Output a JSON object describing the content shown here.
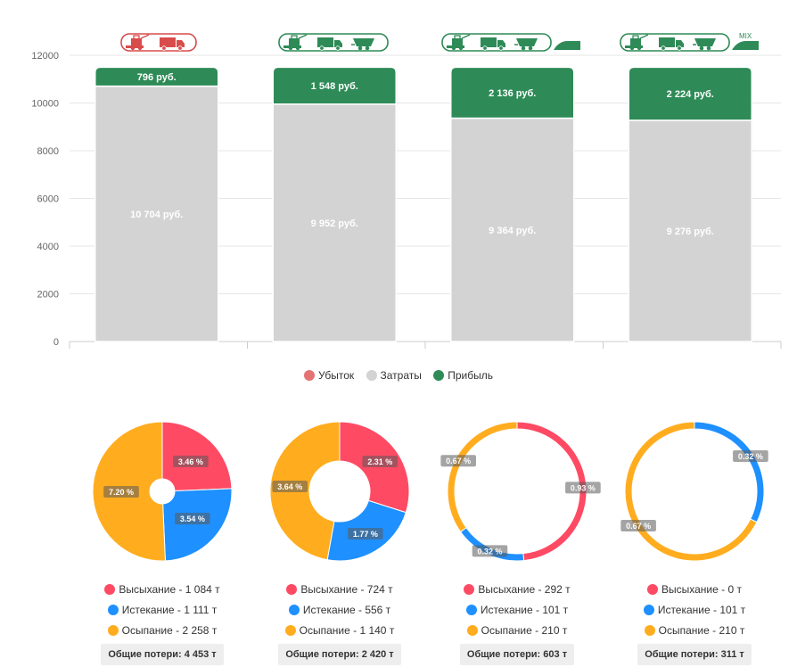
{
  "colors": {
    "loss": "#e57373",
    "costs": "#d3d3d3",
    "profit": "#2e8b57",
    "drying": "#ff4a64",
    "leakage": "#1e90ff",
    "shedding": "#ffad1f",
    "icon_red": "#d94c4c",
    "icon_green": "#2e8b57"
  },
  "icons": [
    [
      "harvester-icon",
      "truck-icon"
    ],
    [
      "harvester-icon",
      "truck-icon",
      "grain-cart-icon"
    ],
    [
      "harvester-icon",
      "truck-icon",
      "grain-cart-icon",
      "grain-sleeve-icon"
    ],
    [
      "harvester-icon",
      "truck-icon",
      "grain-cart-icon",
      "grain-sleeve-icon"
    ]
  ],
  "mix_label": "MIX",
  "chart_data": [
    {
      "type": "bar",
      "stacked": true,
      "categories": [
        "",
        "",
        "",
        ""
      ],
      "series": [
        {
          "name": "Затраты",
          "values": [
            10704,
            9952,
            9364,
            9276
          ],
          "labels": [
            "10 704 руб.",
            "9 952 руб.",
            "9 364 руб.",
            "9 276 руб."
          ]
        },
        {
          "name": "Прибыль",
          "values": [
            796,
            1548,
            2136,
            2224
          ],
          "labels": [
            "796 руб.",
            "1 548 руб.",
            "2 136 руб.",
            "2 224 руб."
          ]
        }
      ],
      "ylim": [
        0,
        12000
      ],
      "yticks": [
        "0",
        "2000",
        "4000",
        "6000",
        "8000",
        "10000",
        "12000"
      ],
      "grid": true,
      "legend": {
        "position": "bottom",
        "items": [
          {
            "name": "Убыток",
            "color": "#e57373"
          },
          {
            "name": "Затраты",
            "color": "#d3d3d3"
          },
          {
            "name": "Прибыль",
            "color": "#2e8b57"
          }
        ]
      }
    },
    {
      "type": "pie",
      "slices": [
        {
          "name": "Высыхание",
          "value": 3.46,
          "label": "3.46 %"
        },
        {
          "name": "Истекание",
          "value": 3.54,
          "label": "3.54 %"
        },
        {
          "name": "Осыпание",
          "value": 7.2,
          "label": "7.20 %"
        }
      ],
      "legend": [
        "Высыхание - 1 084 т",
        "Истекание - 1 111 т",
        "Осыпание - 2 258 т"
      ],
      "total_label": "Общие потери:",
      "total_value": "4 453 т"
    },
    {
      "type": "pie",
      "slices": [
        {
          "name": "Высыхание",
          "value": 2.31,
          "label": "2.31 %"
        },
        {
          "name": "Истекание",
          "value": 1.77,
          "label": "1.77 %"
        },
        {
          "name": "Осыпание",
          "value": 3.64,
          "label": "3.64 %"
        }
      ],
      "legend": [
        "Высыхание - 724 т",
        "Истекание - 556 т",
        "Осыпание - 1 140 т"
      ],
      "total_label": "Общие потери:",
      "total_value": "2 420 т"
    },
    {
      "type": "pie",
      "slices": [
        {
          "name": "Высыхание",
          "value": 0.93,
          "label": "0.93 %"
        },
        {
          "name": "Истекание",
          "value": 0.32,
          "label": "0.32 %"
        },
        {
          "name": "Осыпание",
          "value": 0.67,
          "label": "0.67 %"
        }
      ],
      "legend": [
        "Высыхание - 292 т",
        "Истекание - 101 т",
        "Осыпание - 210 т"
      ],
      "total_label": "Общие потери:",
      "total_value": "603 т"
    },
    {
      "type": "pie",
      "slices": [
        {
          "name": "Высыхание",
          "value": 0,
          "label": ""
        },
        {
          "name": "Истекание",
          "value": 0.32,
          "label": "0.32 %"
        },
        {
          "name": "Осыпание",
          "value": 0.67,
          "label": "0.67 %"
        }
      ],
      "legend": [
        "Высыхание - 0 т",
        "Истекание - 101 т",
        "Осыпание - 210 т"
      ],
      "total_label": "Общие потери:",
      "total_value": "311 т"
    }
  ]
}
